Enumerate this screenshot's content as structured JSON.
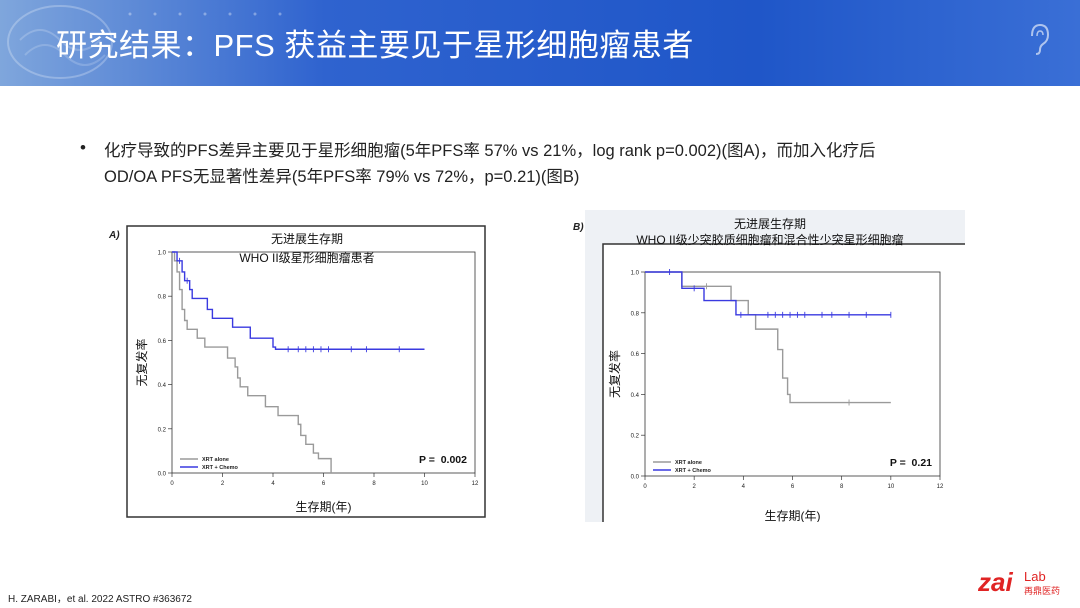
{
  "header": {
    "title": "研究结果：PFS 获益主要见于星形细胞瘤患者",
    "banner_colors": [
      "#7fa6dc",
      "#1f56c8"
    ]
  },
  "bullet": {
    "line1": "化疗导致的PFS差异主要见于星形细胞瘤(5年PFS率 57% vs 21%，log rank p=0.002)(图A)，而加入化疗后",
    "line2": "OD/OA PFS无显著性差异(5年PFS率 79% vs 72%，p=0.21)(图B)"
  },
  "chart_data": [
    {
      "type": "line",
      "panel_label": "A)",
      "title": "无进展生存期",
      "subtitle": "WHO II级星形细胞瘤患者",
      "xlabel": "生存期(年)",
      "ylabel": "无复发率",
      "xlim": [
        0,
        12
      ],
      "ylim": [
        0,
        1.0
      ],
      "xticks": [
        "0",
        "2",
        "4",
        "6",
        "8",
        "10",
        "12"
      ],
      "yticks": [
        "0.0",
        "0.2",
        "0.4",
        "0.6",
        "0.8",
        "1.0"
      ],
      "p_value": "P =  0.002",
      "legend_position": "bottom-left",
      "series": [
        {
          "name": "XRT alone",
          "color": "#9a9a9a",
          "step_points": [
            [
              0,
              1.0
            ],
            [
              0.1,
              0.96
            ],
            [
              0.2,
              0.91
            ],
            [
              0.3,
              0.83
            ],
            [
              0.4,
              0.74
            ],
            [
              0.5,
              0.69
            ],
            [
              0.6,
              0.65
            ],
            [
              1.0,
              0.61
            ],
            [
              1.3,
              0.57
            ],
            [
              2.0,
              0.57
            ],
            [
              2.2,
              0.52
            ],
            [
              2.5,
              0.48
            ],
            [
              2.6,
              0.43
            ],
            [
              2.7,
              0.39
            ],
            [
              3.0,
              0.35
            ],
            [
              3.7,
              0.3
            ],
            [
              4.2,
              0.26
            ],
            [
              4.8,
              0.26
            ],
            [
              5.0,
              0.22
            ],
            [
              5.1,
              0.17
            ],
            [
              5.3,
              0.13
            ],
            [
              5.6,
              0.09
            ],
            [
              5.8,
              0.065
            ],
            [
              6.3,
              0.065
            ],
            [
              6.3,
              0.0
            ]
          ],
          "censored_x": []
        },
        {
          "name": "XRT + Chemo",
          "color": "#3a3ae0",
          "step_points": [
            [
              0,
              1.0
            ],
            [
              0.2,
              0.96
            ],
            [
              0.4,
              0.91
            ],
            [
              0.5,
              0.87
            ],
            [
              0.7,
              0.83
            ],
            [
              0.8,
              0.79
            ],
            [
              1.4,
              0.74
            ],
            [
              1.6,
              0.7
            ],
            [
              2.4,
              0.66
            ],
            [
              3.1,
              0.61
            ],
            [
              4.0,
              0.57
            ],
            [
              4.1,
              0.56
            ],
            [
              10.0,
              0.56
            ]
          ],
          "censored_x": [
            0.3,
            0.6,
            4.6,
            5.0,
            5.3,
            5.6,
            5.9,
            6.2,
            7.1,
            7.7,
            9.0
          ]
        }
      ]
    },
    {
      "type": "line",
      "panel_label": "B)",
      "title": "无进展生存期",
      "subtitle": "WHO II级少突胶质细胞瘤和混合性少突星形细胞瘤",
      "xlabel": "生存期(年)",
      "ylabel": "无复发率",
      "xlim": [
        0,
        12
      ],
      "ylim": [
        0,
        1.0
      ],
      "xticks": [
        "0",
        "2",
        "4",
        "6",
        "8",
        "10",
        "12"
      ],
      "yticks": [
        "0.0",
        "0.2",
        "0.4",
        "0.6",
        "0.8",
        "1.0"
      ],
      "p_value": "P =  0.21",
      "legend_position": "bottom-left",
      "series": [
        {
          "name": "XRT alone",
          "color": "#9a9a9a",
          "step_points": [
            [
              0,
              1.0
            ],
            [
              1.5,
              0.93
            ],
            [
              3.5,
              0.86
            ],
            [
              4.2,
              0.79
            ],
            [
              4.4,
              0.79
            ],
            [
              4.5,
              0.72
            ],
            [
              5.2,
              0.72
            ],
            [
              5.4,
              0.62
            ],
            [
              5.6,
              0.48
            ],
            [
              5.8,
              0.4
            ],
            [
              5.9,
              0.36
            ],
            [
              10.0,
              0.36
            ]
          ],
          "censored_x": [
            2.5,
            8.3
          ]
        },
        {
          "name": "XRT + Chemo",
          "color": "#3a3ae0",
          "step_points": [
            [
              0,
              1.0
            ],
            [
              1.5,
              0.92
            ],
            [
              2.4,
              0.86
            ],
            [
              3.7,
              0.79
            ],
            [
              10.0,
              0.79
            ]
          ],
          "censored_x": [
            1.0,
            2.0,
            3.9,
            5.0,
            5.3,
            5.6,
            5.9,
            6.2,
            6.5,
            7.2,
            7.6,
            8.3,
            9.0,
            10.0
          ]
        }
      ]
    }
  ],
  "footer": {
    "citation": "H. ZARABI，et al. 2022 ASTRO #363672",
    "logo_word": "zai",
    "logo_sub": "Lab",
    "logo_cn": "再鼎医药",
    "logo_color": "#e02424"
  }
}
